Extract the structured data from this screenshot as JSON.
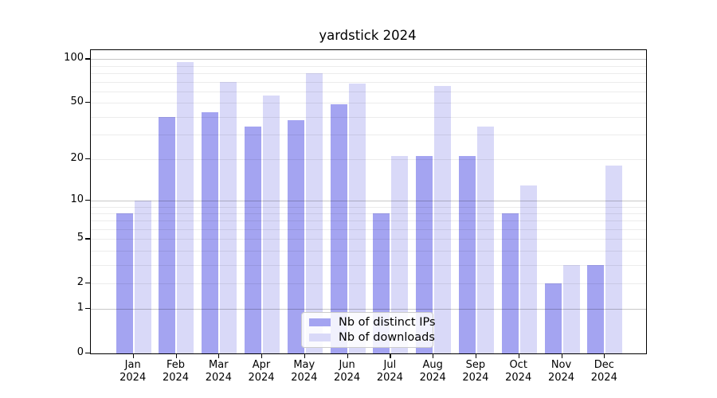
{
  "chart_data": {
    "type": "bar",
    "title": "yardstick 2024",
    "categories": [
      "Jan",
      "Feb",
      "Mar",
      "Apr",
      "May",
      "Jun",
      "Jul",
      "Aug",
      "Sep",
      "Oct",
      "Nov",
      "Dec"
    ],
    "year_label": "2024",
    "series": [
      {
        "name": "Nb of distinct IPs",
        "color": "#a4a4f1",
        "values": [
          8,
          40,
          43,
          34,
          38,
          49,
          8,
          21,
          21,
          8,
          2,
          3
        ]
      },
      {
        "name": "Nb of downloads",
        "color": "#d9d9f8",
        "values": [
          10,
          95,
          70,
          56,
          80,
          68,
          21,
          65,
          34,
          13,
          3,
          18
        ]
      }
    ],
    "yscale": "log1p",
    "ylim": [
      0,
      115
    ],
    "yticks": [
      0,
      1,
      2,
      5,
      10,
      20,
      50,
      100
    ],
    "major_gridlines": [
      1,
      10,
      100
    ],
    "minor_gridlines": [
      2,
      3,
      4,
      5,
      6,
      7,
      8,
      9,
      20,
      30,
      40,
      50,
      60,
      70,
      80,
      90
    ],
    "grid": true,
    "legend_position": "lower center",
    "xlabel": "",
    "ylabel": ""
  },
  "colors": {
    "background": "#ffffff",
    "bar_distinct_ips": "#a4a4f1",
    "bar_downloads": "#d9d9f8",
    "major_grid": "#c6c6c6",
    "minor_grid": "#ececec",
    "axis": "#000000",
    "legend_border": "#cccccc",
    "text": "#000000"
  }
}
